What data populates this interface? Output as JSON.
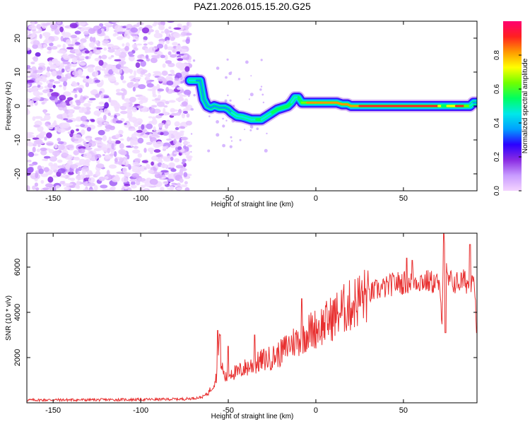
{
  "title": "PAZ1.2026.015.15.20.G25",
  "chart_data": [
    {
      "type": "heatmap",
      "title": "PAZ1.2026.015.15.20.G25",
      "xlabel": "Height of straight line (km)",
      "ylabel": "Frequency (Hz)",
      "xlim": [
        -165,
        92
      ],
      "ylim": [
        -25,
        25
      ],
      "xticks": [
        -150,
        -100,
        -50,
        0,
        50
      ],
      "yticks": [
        -20,
        -10,
        0,
        10,
        20
      ],
      "xtick_labels": [
        "-150",
        "-100",
        "-50",
        "0",
        "50"
      ],
      "ytick_labels": [
        "-20",
        "-10",
        "0",
        "10",
        "20"
      ],
      "colorbar": {
        "label": "Normalized spectral amplitude",
        "range": [
          0,
          1
        ],
        "ticks": [
          0.0,
          0.2,
          0.4,
          0.6,
          0.8
        ],
        "tick_labels": [
          "0.0",
          "0.2",
          "0.4",
          "0.6",
          "0.8"
        ],
        "colors": [
          "#f4d4ff",
          "#c89bff",
          "#8a2be2",
          "#2b00ff",
          "#00a0ff",
          "#00e8e8",
          "#00ff60",
          "#70ff00",
          "#ffff00",
          "#ff9900",
          "#ff2020",
          "#ff0070"
        ]
      },
      "noise_region": {
        "x_from": -165,
        "x_to": -72,
        "freq_from": -25,
        "freq_to": 25,
        "amplitude": 0.08
      },
      "ridge": {
        "x": [
          -72,
          -68,
          -66,
          -64,
          -62,
          -60,
          -58,
          -55,
          -52,
          -50,
          -48,
          -45,
          -42,
          -40,
          -37,
          -34,
          -31,
          -28,
          -25,
          -22,
          -19,
          -16,
          -14,
          -12,
          -10,
          -8,
          -5,
          -2,
          0,
          3,
          6,
          9,
          12,
          15,
          18,
          20,
          25,
          30,
          35,
          40,
          45,
          50,
          55,
          60,
          65,
          70,
          72,
          75,
          80,
          85,
          88,
          90,
          92
        ],
        "freq": [
          7.5,
          7.5,
          7.5,
          2,
          0,
          -0.5,
          0,
          -0.5,
          -0.5,
          -1,
          -2,
          -3,
          -3.2,
          -3.5,
          -4,
          -4,
          -4,
          -3,
          -2,
          -1,
          -0.5,
          0,
          1,
          2.5,
          2.5,
          1,
          1,
          1,
          1,
          1,
          1,
          1,
          1,
          0.5,
          0.5,
          0,
          0,
          0,
          0,
          0,
          0,
          0,
          0,
          0,
          0,
          0,
          0,
          0,
          0,
          0,
          0,
          1,
          1
        ],
        "amplitude": [
          0.4,
          0.45,
          0.35,
          0.3,
          0.35,
          0.3,
          0.4,
          0.3,
          0.35,
          0.35,
          0.45,
          0.45,
          0.5,
          0.4,
          0.45,
          0.5,
          0.5,
          0.45,
          0.5,
          0.55,
          0.6,
          0.55,
          0.5,
          0.45,
          0.5,
          0.6,
          0.75,
          0.8,
          0.85,
          0.85,
          0.8,
          0.8,
          0.85,
          0.75,
          0.8,
          0.8,
          0.9,
          0.95,
          0.95,
          0.95,
          0.9,
          0.9,
          0.95,
          0.9,
          0.95,
          0.9,
          0.6,
          0.5,
          0.9,
          0.85,
          0.45,
          0.4,
          0.4
        ]
      }
    },
    {
      "type": "line",
      "xlabel": "Height of straight line (km)",
      "ylabel": "SNR (10 * v/v)",
      "xlim": [
        -165,
        92
      ],
      "ylim": [
        0,
        7500
      ],
      "xticks": [
        -150,
        -100,
        -50,
        0,
        50
      ],
      "yticks": [
        2000,
        4000,
        6000
      ],
      "xtick_labels": [
        "-150",
        "-100",
        "-50",
        "0",
        "50"
      ],
      "ytick_labels": [
        "2000",
        "4000",
        "6000"
      ],
      "series": [
        {
          "name": "SNR",
          "color": "#e83030",
          "x": [
            -165,
            -150,
            -130,
            -110,
            -90,
            -75,
            -70,
            -65,
            -62,
            -60,
            -58,
            -56,
            -55,
            -54,
            -52,
            -50,
            -48,
            -45,
            -42,
            -40,
            -35,
            -30,
            -25,
            -20,
            -15,
            -10,
            -5,
            0,
            5,
            10,
            15,
            20,
            25,
            30,
            35,
            40,
            45,
            50,
            55,
            60,
            65,
            70,
            72,
            73,
            75,
            80,
            85,
            88,
            90,
            92
          ],
          "y": [
            120,
            130,
            130,
            140,
            150,
            170,
            200,
            250,
            400,
            600,
            900,
            1400,
            3100,
            1700,
            1100,
            1200,
            1400,
            1300,
            1500,
            1550,
            1700,
            1900,
            2000,
            2200,
            2600,
            2800,
            3100,
            3300,
            3500,
            3800,
            4100,
            4300,
            4600,
            4800,
            5000,
            5100,
            5300,
            5300,
            5400,
            5400,
            5350,
            5300,
            3800,
            7400,
            5400,
            5300,
            5400,
            5200,
            6000,
            3000
          ],
          "spikes": [
            {
              "x": -56,
              "y": 3200
            },
            {
              "x": -50,
              "y": 2500
            },
            {
              "x": -35,
              "y": 3000
            },
            {
              "x": -8,
              "y": 4600
            },
            {
              "x": 52,
              "y": 6400
            },
            {
              "x": 55,
              "y": 6300
            },
            {
              "x": 73,
              "y": 7500
            },
            {
              "x": 74,
              "y": 3100
            },
            {
              "x": 88,
              "y": 7000
            }
          ]
        }
      ]
    }
  ]
}
